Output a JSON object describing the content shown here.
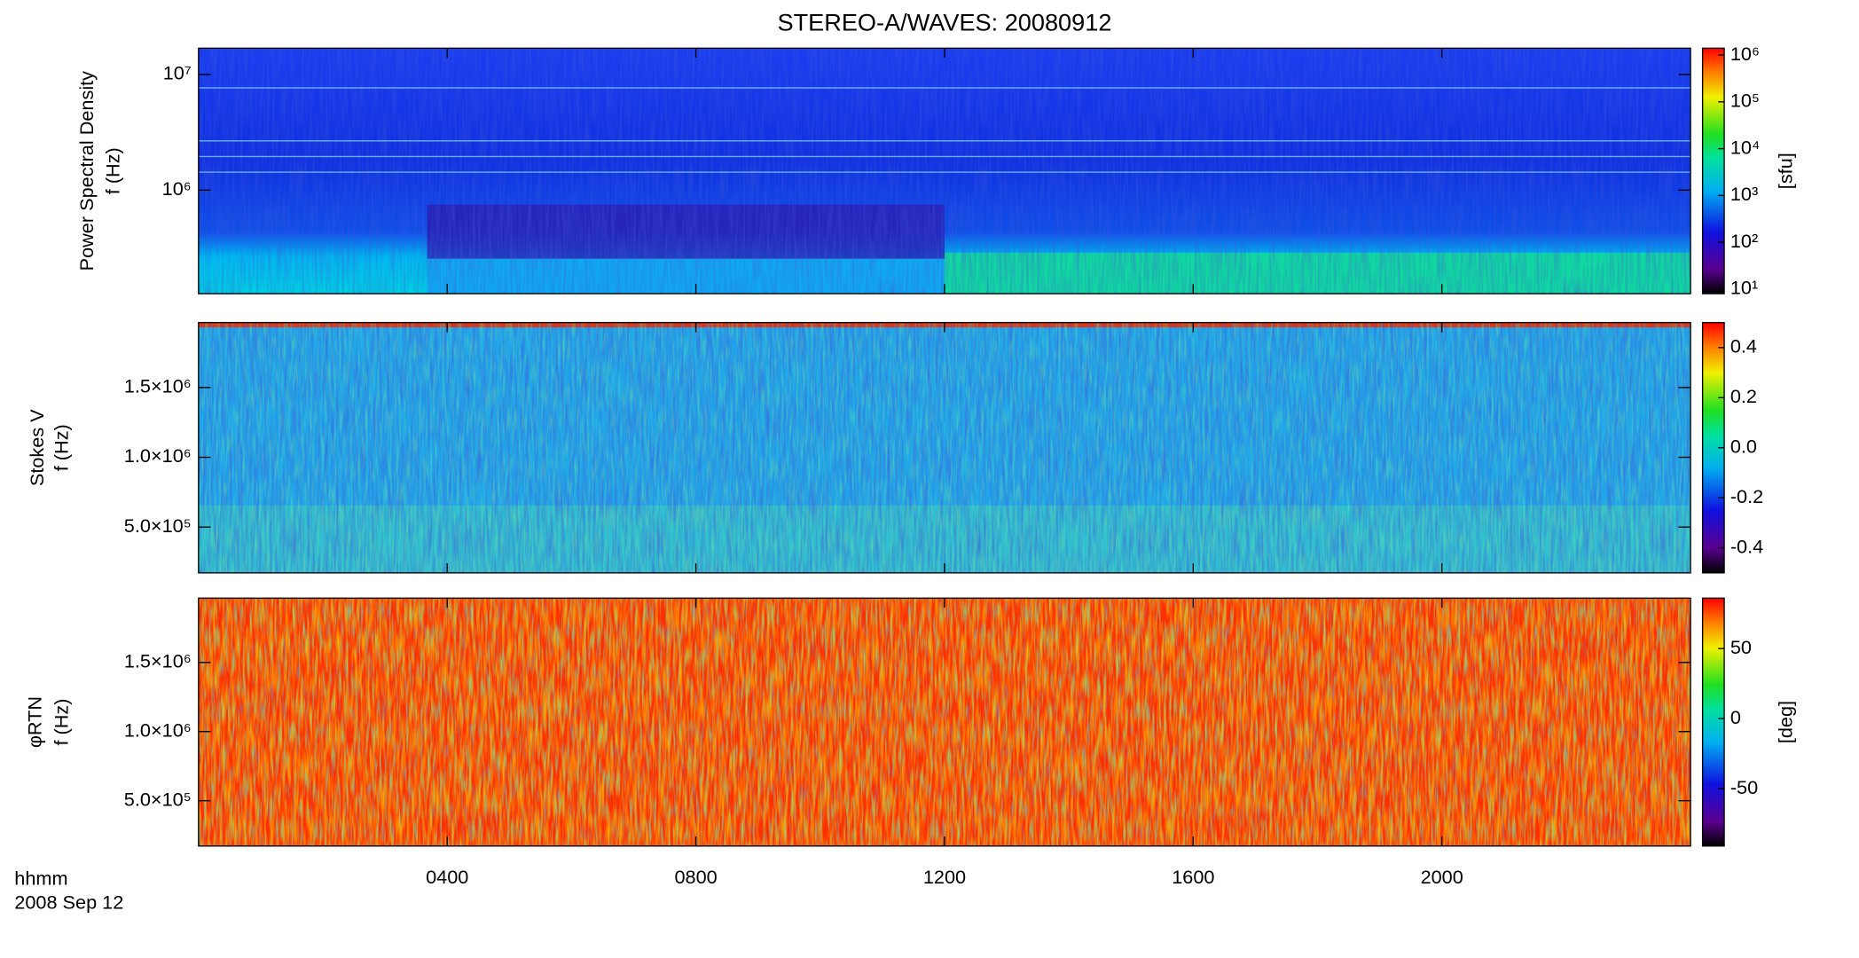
{
  "title": "STEREO-A/WAVES: 20080912",
  "shared_x": {
    "xlim": [
      0,
      24
    ],
    "xticks": [
      {
        "value": 4,
        "label": "0400"
      },
      {
        "value": 8,
        "label": "0800"
      },
      {
        "value": 12,
        "label": "1200"
      },
      {
        "value": 16,
        "label": "1600"
      },
      {
        "value": 20,
        "label": "2000"
      }
    ],
    "xlabel": [
      "hhmm",
      "2008 Sep 12"
    ]
  },
  "chart_data": [
    {
      "type": "heatmap",
      "ylabel": [
        "Power Spectral Density",
        "f (Hz)"
      ],
      "yscale": "log",
      "ylim": [
        127000,
        16900000
      ],
      "yticks": [
        {
          "value": 1000000,
          "label": "10⁶"
        },
        {
          "value": 10000000,
          "label": "10⁷"
        }
      ],
      "colorbar": {
        "scale": "log",
        "lim": [
          8,
          1400000
        ],
        "ticks": [
          {
            "value": 10,
            "label": "10¹"
          },
          {
            "value": 100,
            "label": "10²"
          },
          {
            "value": 1000,
            "label": "10³"
          },
          {
            "value": 10000,
            "label": "10⁴"
          },
          {
            "value": 100000,
            "label": "10⁵"
          },
          {
            "value": 1000000,
            "label": "10⁶"
          }
        ],
        "label": "[sfu]"
      }
    },
    {
      "type": "heatmap",
      "ylabel": [
        "Stokes V",
        "f (Hz)"
      ],
      "yscale": "linear",
      "ylim": [
        172000,
        1965000
      ],
      "yticks": [
        {
          "value": 500000,
          "label": "5.0×10⁵"
        },
        {
          "value": 1000000,
          "label": "1.0×10⁶"
        },
        {
          "value": 1500000,
          "label": "1.5×10⁶"
        }
      ],
      "colorbar": {
        "scale": "linear",
        "lim": [
          -0.5,
          0.5
        ],
        "ticks": [
          {
            "value": -0.4,
            "label": "-0.4"
          },
          {
            "value": -0.2,
            "label": "-0.2"
          },
          {
            "value": 0,
            "label": "0.0"
          },
          {
            "value": 0.2,
            "label": "0.2"
          },
          {
            "value": 0.4,
            "label": "0.4"
          }
        ]
      }
    },
    {
      "type": "heatmap",
      "ylabel": [
        "φRTN",
        "f (Hz)"
      ],
      "yscale": "linear",
      "ylim": [
        172000,
        1965000
      ],
      "yticks": [
        {
          "value": 500000,
          "label": "5.0×10⁵"
        },
        {
          "value": 1000000,
          "label": "1.0×10⁶"
        },
        {
          "value": 1500000,
          "label": "1.5×10⁶"
        }
      ],
      "colorbar": {
        "scale": "linear",
        "lim": [
          -91,
          86
        ],
        "ticks": [
          -50,
          0,
          50
        ],
        "label": "[deg]"
      }
    }
  ]
}
